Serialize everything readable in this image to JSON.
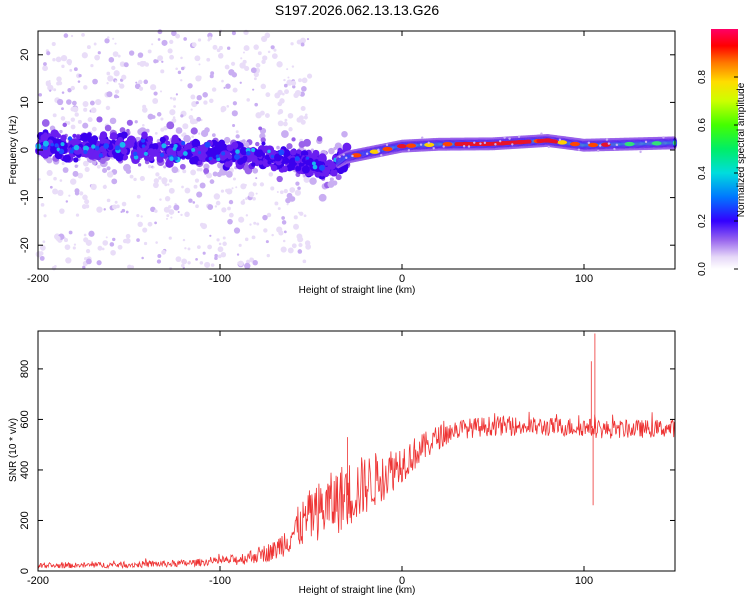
{
  "title": "S197.2026.062.13.13.G26",
  "chart_data": [
    {
      "type": "heatmap",
      "name": "spectrogram",
      "xlabel": "Height of straight line (km)",
      "ylabel": "Frequency (Hz)",
      "xlim": [
        -200,
        150
      ],
      "ylim": [
        -25,
        25
      ],
      "x_ticks": [
        -200,
        -100,
        0,
        100
      ],
      "y_ticks": [
        -20,
        -10,
        0,
        10,
        20
      ],
      "colorbar": {
        "label": "Normalized spectral amplitude",
        "range": [
          0,
          1
        ],
        "ticks": [
          "0.0",
          "0.2",
          "0.4",
          "0.6",
          "0.8"
        ]
      },
      "signal_center_track": [
        {
          "x": -200,
          "y": 1.0
        },
        {
          "x": -150,
          "y": 0.3
        },
        {
          "x": -100,
          "y": -0.5
        },
        {
          "x": -60,
          "y": -2.0
        },
        {
          "x": -40,
          "y": -3.5
        },
        {
          "x": -30,
          "y": -1.5
        },
        {
          "x": 0,
          "y": 0.8
        },
        {
          "x": 20,
          "y": 1.2
        },
        {
          "x": 50,
          "y": 1.3
        },
        {
          "x": 80,
          "y": 2.0
        },
        {
          "x": 100,
          "y": 1.0
        },
        {
          "x": 150,
          "y": 1.5
        }
      ]
    },
    {
      "type": "line",
      "name": "snr",
      "xlabel": "Height of straight line (km)",
      "ylabel": "SNR (10 * v/v)",
      "xlim": [
        -200,
        150
      ],
      "ylim": [
        0,
        950
      ],
      "x_ticks": [
        -200,
        -100,
        0,
        100
      ],
      "y_ticks": [
        0,
        200,
        400,
        600,
        800
      ],
      "color": "#ee3333",
      "trend": {
        "x": [
          -200,
          -150,
          -120,
          -90,
          -70,
          -60,
          -50,
          -40,
          -30,
          -20,
          -10,
          0,
          10,
          20,
          30,
          50,
          80,
          100,
          110,
          150
        ],
        "y": [
          20,
          25,
          30,
          45,
          80,
          150,
          220,
          260,
          300,
          340,
          380,
          430,
          480,
          530,
          560,
          575,
          570,
          570,
          560,
          565
        ]
      },
      "noise": {
        "x": [
          -200,
          -100,
          -70,
          -50,
          -30,
          -10,
          10,
          30,
          150
        ],
        "y": [
          10,
          15,
          40,
          110,
          140,
          100,
          60,
          40,
          35
        ]
      },
      "spikes": [
        {
          "x": 104,
          "y": 830
        },
        {
          "x": 106,
          "y": 940
        },
        {
          "x": 105,
          "y": 260
        },
        {
          "x": -30,
          "y": 530
        }
      ]
    }
  ]
}
